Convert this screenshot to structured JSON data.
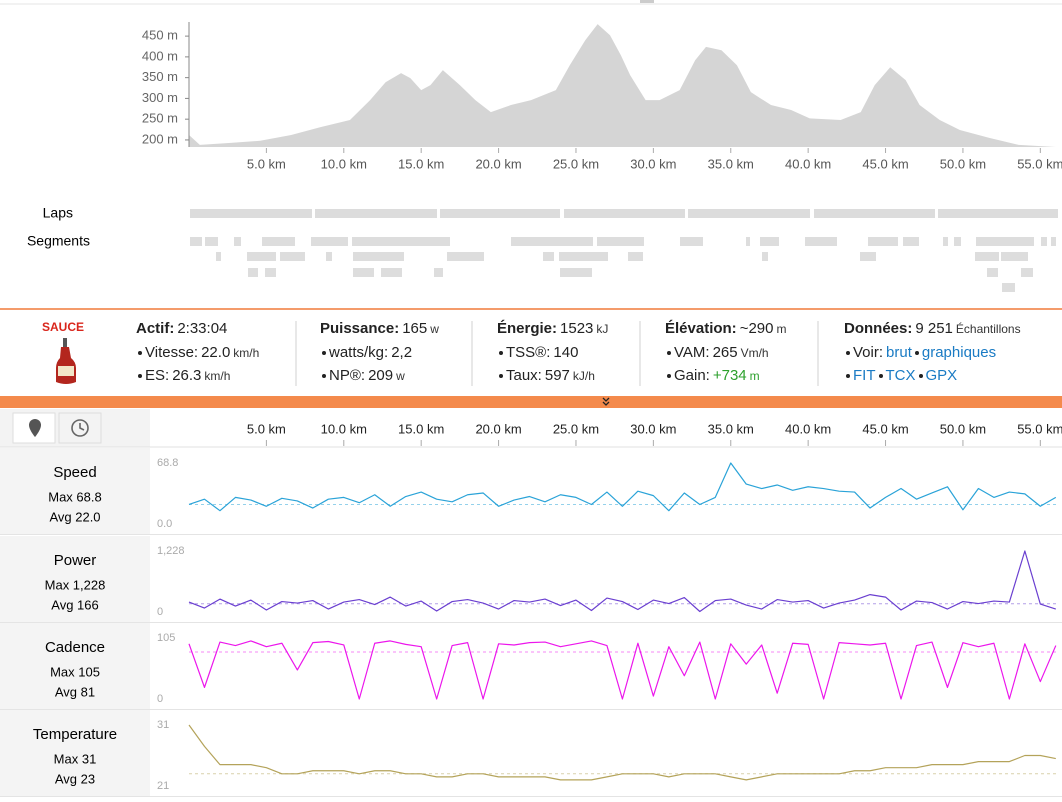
{
  "elevation": {
    "type": "area",
    "color": "#d5d5d5",
    "xlim": [
      0,
      56.4
    ],
    "xticks": [
      {
        "value": 5,
        "label": "5.0 km"
      },
      {
        "value": 10,
        "label": "10.0 km"
      },
      {
        "value": 15,
        "label": "15.0 km"
      },
      {
        "value": 20,
        "label": "20.0 km"
      },
      {
        "value": 25,
        "label": "25.0 km"
      },
      {
        "value": 30,
        "label": "30.0 km"
      },
      {
        "value": 35,
        "label": "35.0 km"
      },
      {
        "value": 40,
        "label": "40.0 km"
      },
      {
        "value": 45,
        "label": "45.0 km"
      },
      {
        "value": 50,
        "label": "50.0 km"
      },
      {
        "value": 55,
        "label": "55.0 km"
      }
    ],
    "ylim": [
      183,
      484
    ],
    "yticks": [
      {
        "value": 200,
        "label": "200 m"
      },
      {
        "value": 250,
        "label": "250 m"
      },
      {
        "value": 300,
        "label": "300 m"
      },
      {
        "value": 350,
        "label": "350 m"
      },
      {
        "value": 400,
        "label": "400 m"
      },
      {
        "value": 450,
        "label": "450 m"
      }
    ],
    "x": [
      0.0,
      0.7,
      2.7,
      4.6,
      6.6,
      8.5,
      10.4,
      11.7,
      12.7,
      13.7,
      14.3,
      15.0,
      15.6,
      16.4,
      17.5,
      18.5,
      19.5,
      20.8,
      22.1,
      23.7,
      24.6,
      25.6,
      26.4,
      27.2,
      27.9,
      28.5,
      29.5,
      30.4,
      31.7,
      32.7,
      33.4,
      34.4,
      35.4,
      36.3,
      37.6,
      38.9,
      40.1,
      42.1,
      43.4,
      44.3,
      45.3,
      46.3,
      47.2,
      48.5,
      49.8,
      51.7,
      53.6,
      56.0
    ],
    "values": [
      212,
      188,
      193,
      198,
      212,
      231,
      248,
      296,
      339,
      361,
      349,
      320,
      332,
      368,
      332,
      296,
      267,
      284,
      296,
      320,
      380,
      440,
      479,
      452,
      404,
      356,
      296,
      296,
      320,
      392,
      424,
      416,
      380,
      315,
      284,
      272,
      252,
      248,
      267,
      332,
      375,
      344,
      284,
      248,
      224,
      205,
      188,
      183
    ]
  },
  "laps_label": "Laps",
  "segments_label": "Segments",
  "summary": {
    "brand": "SAUCE",
    "columns": [
      {
        "title": "Actif:",
        "value": "2:33:04",
        "items": [
          {
            "label": "Vitesse:",
            "value": "22.0",
            "unit": "km/h"
          },
          {
            "label": "ES:",
            "value": "26.3",
            "unit": "km/h"
          }
        ]
      },
      {
        "title": "Puissance:",
        "value": "165",
        "unit": "w",
        "items": [
          {
            "label": "watts/kg:",
            "value": "2,2"
          },
          {
            "label": "NP®:",
            "value": "209",
            "unit": "w"
          }
        ]
      },
      {
        "title": "Énergie:",
        "value": "1523",
        "unit": "kJ",
        "items": [
          {
            "label": "TSS®:",
            "value": "140"
          },
          {
            "label": "Taux:",
            "value": "597",
            "unit": "kJ/h"
          }
        ]
      },
      {
        "title": "Élévation:",
        "value": "~290",
        "unit": "m",
        "items": [
          {
            "label": "VAM:",
            "value": "265",
            "unit": "Vm/h"
          },
          {
            "label": "Gain:",
            "value": "+734",
            "unit": "m",
            "color": "#2ca02c"
          }
        ]
      },
      {
        "title": "Données:",
        "value": "9 251",
        "unit": "Échantillons",
        "items": [
          {
            "label": "Voir:",
            "links": [
              "brut",
              "graphiques"
            ]
          },
          {
            "links": [
              "FIT",
              "TCX",
              "GPX"
            ]
          }
        ]
      }
    ]
  },
  "streams": {
    "xlim": [
      0,
      56.4
    ],
    "xticks": [
      {
        "value": 5,
        "label": "5.0 km"
      },
      {
        "value": 10,
        "label": "10.0 km"
      },
      {
        "value": 15,
        "label": "15.0 km"
      },
      {
        "value": 20,
        "label": "20.0 km"
      },
      {
        "value": 25,
        "label": "25.0 km"
      },
      {
        "value": 30,
        "label": "30.0 km"
      },
      {
        "value": 35,
        "label": "35.0 km"
      },
      {
        "value": 40,
        "label": "40.0 km"
      },
      {
        "value": 45,
        "label": "45.0 km"
      },
      {
        "value": 50,
        "label": "50.0 km"
      },
      {
        "value": 55,
        "label": "55.0 km"
      }
    ],
    "x": [
      0,
      1,
      2,
      3,
      4,
      5,
      6,
      7,
      8,
      9,
      10,
      11,
      12,
      13,
      14,
      15,
      16,
      17,
      18,
      19,
      20,
      21,
      22,
      23,
      24,
      25,
      26,
      27,
      28,
      29,
      30,
      31,
      32,
      33,
      34,
      35,
      36,
      37,
      38,
      39,
      40,
      41,
      42,
      43,
      44,
      45,
      46,
      47,
      48,
      49,
      50,
      51,
      52,
      53,
      54,
      55,
      56
    ],
    "charts": [
      {
        "type": "line",
        "name": "Speed",
        "max_label": "Max 68.8",
        "avg": {
          "value": 22.0,
          "label": "Avg 22.0"
        },
        "color": "#2aa3d8",
        "ylim": [
          0,
          68.8
        ],
        "yticks": [
          {
            "value": 0,
            "label": "0.0"
          },
          68.8
        ],
        "values": [
          22,
          28,
          15,
          30,
          27,
          20,
          29,
          26,
          18,
          28,
          30,
          24,
          33,
          20,
          31,
          36,
          28,
          25,
          33,
          35,
          20,
          27,
          31,
          25,
          33,
          30,
          22,
          36,
          20,
          37,
          32,
          15,
          35,
          22,
          30,
          68.8,
          45,
          40,
          44,
          38,
          42,
          40,
          37,
          36,
          18,
          30,
          40,
          28,
          35,
          42,
          16,
          40,
          30,
          36,
          34,
          20,
          30
        ]
      },
      {
        "type": "line",
        "name": "Power",
        "max_label": "Max 1,228",
        "avg": {
          "value": 166,
          "label": "Avg 166"
        },
        "color": "#6a3fd0",
        "ylim": [
          0,
          1228
        ],
        "yticks": [
          0,
          {
            "value": 1228,
            "label": "1,228"
          }
        ],
        "values": [
          200,
          80,
          260,
          120,
          240,
          40,
          210,
          180,
          230,
          60,
          200,
          250,
          150,
          300,
          120,
          220,
          20,
          210,
          250,
          180,
          60,
          230,
          200,
          260,
          130,
          240,
          30,
          280,
          210,
          50,
          240,
          170,
          290,
          10,
          230,
          260,
          140,
          60,
          250,
          200,
          230,
          80,
          180,
          240,
          350,
          300,
          40,
          220,
          190,
          60,
          210,
          170,
          220,
          200,
          1228,
          160,
          60
        ]
      },
      {
        "type": "line",
        "name": "Cadence",
        "max_label": "Max 105",
        "avg": {
          "value": 81,
          "label": "Avg 81"
        },
        "color": "#ec16ec",
        "ylim": [
          0,
          105
        ],
        "yticks": [
          0,
          105
        ],
        "values": [
          95,
          20,
          98,
          92,
          100,
          90,
          96,
          50,
          97,
          99,
          93,
          0,
          96,
          100,
          94,
          90,
          0,
          92,
          97,
          0,
          95,
          93,
          97,
          98,
          90,
          95,
          100,
          92,
          0,
          96,
          5,
          90,
          40,
          98,
          0,
          95,
          60,
          93,
          10,
          96,
          94,
          0,
          97,
          95,
          93,
          96,
          0,
          92,
          98,
          20,
          97,
          90,
          96,
          0,
          95,
          30,
          92
        ]
      },
      {
        "type": "line",
        "name": "Temperature",
        "max_label": "Max 31",
        "avg": {
          "value": 23,
          "label": "Avg 23"
        },
        "color": "#b4a35a",
        "ylim": [
          21,
          31
        ],
        "yticks": [
          21,
          31
        ],
        "values": [
          31,
          27.5,
          24.5,
          24.5,
          24.5,
          24,
          23,
          23,
          23.5,
          23.5,
          23.5,
          23,
          23.5,
          23.5,
          23,
          23,
          22.5,
          22.5,
          23,
          23,
          22.5,
          22.5,
          22.5,
          22.5,
          22,
          22,
          22,
          22.5,
          23,
          23,
          23,
          22.5,
          23,
          23,
          23,
          22.5,
          22,
          22.5,
          23,
          23,
          23,
          23,
          23,
          23.5,
          23.5,
          24,
          24,
          24,
          24.5,
          24.5,
          24.5,
          25,
          25,
          25,
          26,
          26,
          25.5
        ]
      }
    ]
  }
}
